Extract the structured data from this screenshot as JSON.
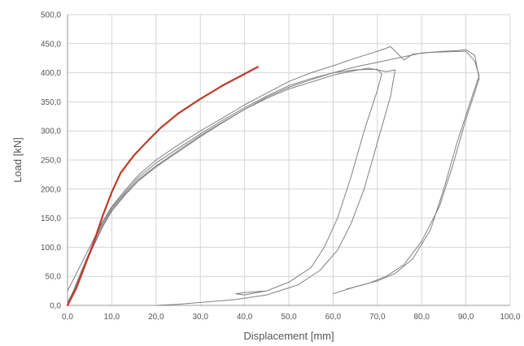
{
  "chart_data": {
    "type": "line",
    "title": "",
    "xlabel": "Displacement [mm]",
    "ylabel": "Load [kN]",
    "xlim": [
      0,
      100
    ],
    "ylim": [
      0,
      500
    ],
    "x_ticks": [
      "0,0",
      "10,0",
      "20,0",
      "30,0",
      "40,0",
      "50,0",
      "60,0",
      "70,0",
      "80,0",
      "90,0",
      "100,0"
    ],
    "y_ticks": [
      "0,0",
      "50,0",
      "100,0",
      "150,0",
      "200,0",
      "250,0",
      "300,0",
      "350,0",
      "400,0",
      "450,0",
      "500,0"
    ],
    "grid": true,
    "legend": "none",
    "series": [
      {
        "color": "#c0392b",
        "width": 2.2,
        "points": [
          [
            0,
            0
          ],
          [
            2,
            30
          ],
          [
            4,
            70
          ],
          [
            6,
            110
          ],
          [
            8,
            155
          ],
          [
            10,
            195
          ],
          [
            12,
            228
          ],
          [
            15,
            258
          ],
          [
            18,
            282
          ],
          [
            21,
            305
          ],
          [
            25,
            330
          ],
          [
            30,
            355
          ],
          [
            35,
            378
          ],
          [
            40,
            398
          ],
          [
            43,
            410
          ]
        ]
      },
      {
        "color": "#808080",
        "width": 1,
        "points": [
          [
            0,
            0
          ],
          [
            2,
            38
          ],
          [
            4,
            75
          ],
          [
            6,
            110
          ],
          [
            8,
            142
          ],
          [
            10,
            168
          ],
          [
            13,
            195
          ],
          [
            16,
            220
          ],
          [
            20,
            245
          ],
          [
            25,
            270
          ],
          [
            30,
            295
          ],
          [
            35,
            318
          ],
          [
            40,
            340
          ],
          [
            45,
            360
          ],
          [
            50,
            378
          ],
          [
            55,
            390
          ],
          [
            60,
            400
          ],
          [
            65,
            405
          ],
          [
            70,
            406
          ],
          [
            71,
            398
          ],
          [
            70,
            370
          ],
          [
            67,
            300
          ],
          [
            64,
            220
          ],
          [
            61,
            150
          ],
          [
            58,
            100
          ],
          [
            55,
            65
          ],
          [
            50,
            40
          ],
          [
            45,
            25
          ],
          [
            40,
            18
          ],
          [
            38,
            20
          ],
          [
            40,
            22
          ],
          [
            45,
            25
          ]
        ]
      },
      {
        "color": "#808080",
        "width": 1,
        "points": [
          [
            0,
            0
          ],
          [
            2,
            36
          ],
          [
            4,
            72
          ],
          [
            6,
            106
          ],
          [
            8,
            138
          ],
          [
            10,
            165
          ],
          [
            13,
            192
          ],
          [
            16,
            216
          ],
          [
            20,
            240
          ],
          [
            25,
            266
          ],
          [
            30,
            292
          ],
          [
            35,
            315
          ],
          [
            40,
            337
          ],
          [
            45,
            356
          ],
          [
            50,
            372
          ],
          [
            55,
            384
          ],
          [
            60,
            396
          ],
          [
            65,
            404
          ],
          [
            68,
            408
          ],
          [
            72,
            402
          ],
          [
            74,
            405
          ],
          [
            73,
            360
          ],
          [
            70,
            280
          ],
          [
            67,
            200
          ],
          [
            64,
            140
          ],
          [
            61,
            95
          ],
          [
            57,
            60
          ],
          [
            52,
            35
          ],
          [
            45,
            18
          ],
          [
            38,
            10
          ],
          [
            30,
            5
          ],
          [
            25,
            2
          ],
          [
            20,
            0
          ]
        ]
      },
      {
        "color": "#808080",
        "width": 1,
        "points": [
          [
            0,
            25
          ],
          [
            2,
            55
          ],
          [
            4,
            85
          ],
          [
            6,
            115
          ],
          [
            8,
            145
          ],
          [
            10,
            170
          ],
          [
            13,
            198
          ],
          [
            16,
            224
          ],
          [
            20,
            250
          ],
          [
            25,
            276
          ],
          [
            30,
            300
          ],
          [
            35,
            322
          ],
          [
            40,
            345
          ],
          [
            45,
            365
          ],
          [
            50,
            385
          ],
          [
            55,
            400
          ],
          [
            60,
            412
          ],
          [
            65,
            425
          ],
          [
            70,
            437
          ],
          [
            73,
            445
          ],
          [
            76,
            422
          ],
          [
            78,
            432
          ],
          [
            82,
            435
          ],
          [
            86,
            436
          ],
          [
            90,
            437
          ],
          [
            92,
            420
          ],
          [
            93,
            395
          ],
          [
            91,
            350
          ],
          [
            88,
            280
          ],
          [
            85,
            200
          ],
          [
            82,
            130
          ],
          [
            78,
            80
          ],
          [
            74,
            55
          ],
          [
            70,
            42
          ],
          [
            65,
            32
          ],
          [
            60,
            20
          ]
        ]
      },
      {
        "color": "#808080",
        "width": 1,
        "points": [
          [
            0,
            5
          ],
          [
            2,
            35
          ],
          [
            4,
            70
          ],
          [
            6,
            104
          ],
          [
            8,
            136
          ],
          [
            10,
            162
          ],
          [
            13,
            190
          ],
          [
            16,
            214
          ],
          [
            20,
            238
          ],
          [
            25,
            264
          ],
          [
            30,
            290
          ],
          [
            35,
            314
          ],
          [
            40,
            337
          ],
          [
            45,
            358
          ],
          [
            50,
            375
          ],
          [
            55,
            388
          ],
          [
            60,
            400
          ],
          [
            65,
            410
          ],
          [
            70,
            418
          ],
          [
            75,
            426
          ],
          [
            80,
            434
          ],
          [
            85,
            437
          ],
          [
            88,
            438
          ],
          [
            90,
            440
          ],
          [
            92,
            430
          ],
          [
            93,
            390
          ],
          [
            90,
            320
          ],
          [
            87,
            240
          ],
          [
            84,
            170
          ],
          [
            80,
            110
          ],
          [
            76,
            70
          ],
          [
            72,
            50
          ],
          [
            68,
            38
          ],
          [
            63,
            28
          ]
        ]
      }
    ]
  }
}
